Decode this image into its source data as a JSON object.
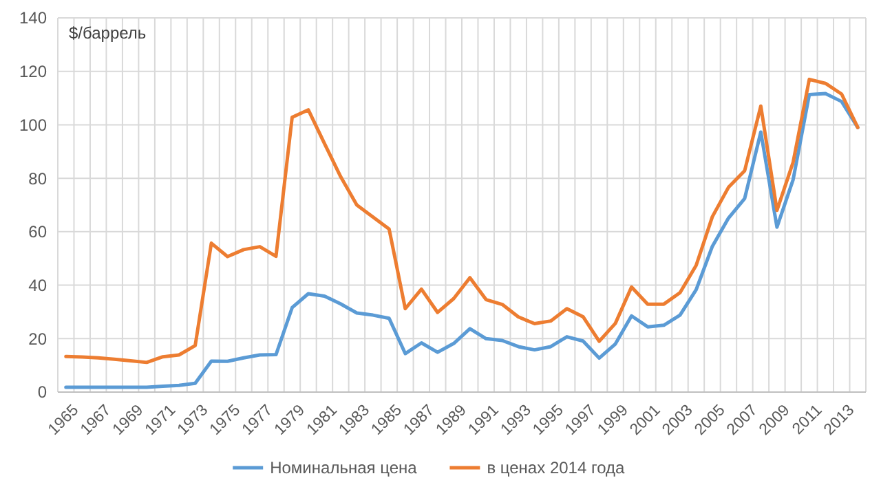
{
  "chart_data": {
    "type": "line",
    "ylabel": "$/баррель",
    "categories": [
      "1965",
      null,
      "1967",
      null,
      "1969",
      null,
      "1971",
      null,
      "1973",
      null,
      "1975",
      null,
      "1977",
      null,
      "1979",
      null,
      "1981",
      null,
      "1983",
      null,
      "1985",
      null,
      "1987",
      null,
      "1989",
      null,
      "1991",
      null,
      "1993",
      null,
      "1995",
      null,
      "1997",
      null,
      "1999",
      null,
      "2001",
      null,
      "2003",
      null,
      "2005",
      null,
      "2007",
      null,
      "2009",
      null,
      "2011",
      null,
      "2013",
      null
    ],
    "series": [
      {
        "name": "Номинальная цена",
        "color": "#5b9bd5",
        "values": [
          1.8,
          1.8,
          1.8,
          1.8,
          1.8,
          1.8,
          2.2,
          2.5,
          3.3,
          11.6,
          11.5,
          12.8,
          13.9,
          14,
          31.6,
          36.8,
          35.9,
          33,
          29.6,
          28.8,
          27.6,
          14.4,
          18.4,
          14.9,
          18.2,
          23.7,
          20,
          19.3,
          17,
          15.8,
          17,
          20.7,
          19.1,
          12.7,
          18,
          28.5,
          24.4,
          25,
          28.8,
          38.3,
          54.5,
          65.1,
          72.4,
          97.3,
          61.7,
          79.5,
          111.3,
          111.7,
          108.7,
          99
        ]
      },
      {
        "name": "в ценах 2014 года",
        "color": "#ed7d31",
        "values": [
          13.3,
          13.1,
          12.8,
          12.3,
          11.7,
          11.1,
          13.2,
          13.9,
          17.4,
          55.7,
          50.7,
          53.3,
          54.4,
          50.8,
          102.8,
          105.6,
          93,
          80.6,
          70,
          65.5,
          61,
          31.2,
          38.5,
          29.8,
          35,
          42.8,
          34.6,
          32.8,
          28.1,
          25.6,
          26.6,
          31.2,
          28.2,
          19,
          25.7,
          39.3,
          32.9,
          32.9,
          37.2,
          47.4,
          65.6,
          76.6,
          82.8,
          107,
          68,
          86,
          117,
          115.5,
          111.5,
          99
        ]
      }
    ],
    "ylim": [
      0,
      140
    ],
    "yticks": [
      0,
      20,
      40,
      60,
      80,
      100,
      120,
      140
    ],
    "grid": true,
    "legend": "bottom",
    "marker": "none",
    "line_style": "solid"
  }
}
